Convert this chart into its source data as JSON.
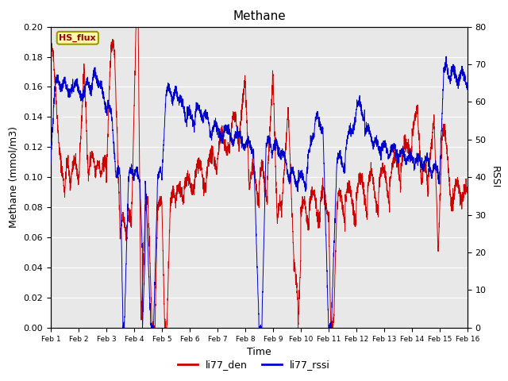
{
  "title": "Methane",
  "ylabel_left": "Methane (mmol/m3)",
  "ylabel_right": "RSSI",
  "xlabel": "Time",
  "ylim_left": [
    0.0,
    0.2
  ],
  "ylim_right": [
    0,
    80
  ],
  "yticks_left": [
    0.0,
    0.02,
    0.04,
    0.06,
    0.08,
    0.1,
    0.12,
    0.14,
    0.16,
    0.18,
    0.2
  ],
  "yticks_right": [
    0,
    10,
    20,
    30,
    40,
    50,
    60,
    70,
    80
  ],
  "color_red": "#cc0000",
  "color_blue": "#0000cc",
  "legend_labels": [
    "li77_den",
    "li77_rssi"
  ],
  "box_label": "HS_flux",
  "bg_color": "#e8e8e8",
  "fig_bg": "#ffffff",
  "title_fontsize": 11,
  "axis_fontsize": 9,
  "tick_fontsize": 8,
  "legend_fontsize": 9
}
